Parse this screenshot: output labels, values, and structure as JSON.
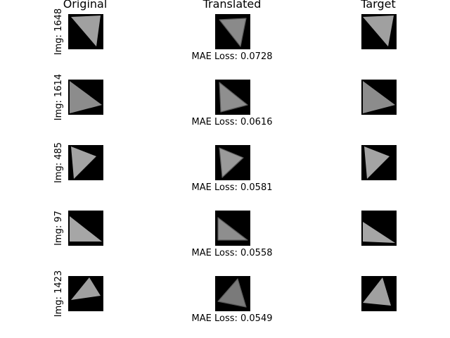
{
  "columns": {
    "original": "Original",
    "translated": "Translated",
    "target": "Target"
  },
  "rows": [
    {
      "label": "Img: 1648",
      "loss": "MAE Loss: 0.0728",
      "original": {
        "points": [
          [
            4,
            4
          ],
          [
            46,
            2
          ],
          [
            40,
            46
          ]
        ],
        "fill": "#a0a0a0"
      },
      "translated": {
        "points": [
          [
            6,
            8
          ],
          [
            44,
            6
          ],
          [
            36,
            46
          ]
        ],
        "fill": "#8a8a8a"
      },
      "target": {
        "points": [
          [
            2,
            4
          ],
          [
            46,
            2
          ],
          [
            38,
            46
          ]
        ],
        "fill": "#a0a0a0"
      }
    },
    {
      "label": "Img: 1614",
      "loss": "MAE Loss: 0.0616",
      "original": {
        "points": [
          [
            2,
            2
          ],
          [
            48,
            36
          ],
          [
            2,
            48
          ]
        ],
        "fill": "#8c8c8c"
      },
      "translated": {
        "points": [
          [
            6,
            4
          ],
          [
            46,
            36
          ],
          [
            8,
            46
          ]
        ],
        "fill": "#8f8f8f"
      },
      "target": {
        "points": [
          [
            2,
            2
          ],
          [
            48,
            36
          ],
          [
            2,
            48
          ]
        ],
        "fill": "#8c8c8c"
      }
    },
    {
      "label": "Img: 485",
      "loss": "MAE Loss: 0.0581",
      "original": {
        "points": [
          [
            4,
            2
          ],
          [
            40,
            16
          ],
          [
            8,
            48
          ]
        ],
        "fill": "#a4a4a4"
      },
      "translated": {
        "points": [
          [
            6,
            4
          ],
          [
            40,
            18
          ],
          [
            10,
            46
          ]
        ],
        "fill": "#9a9a9a"
      },
      "target": {
        "points": [
          [
            4,
            2
          ],
          [
            40,
            16
          ],
          [
            8,
            48
          ]
        ],
        "fill": "#a4a4a4"
      }
    },
    {
      "label": "Img: 97",
      "loss": "MAE Loss: 0.0558",
      "original": {
        "points": [
          [
            2,
            8
          ],
          [
            48,
            44
          ],
          [
            2,
            44
          ]
        ],
        "fill": "#a6a6a6"
      },
      "translated": {
        "points": [
          [
            4,
            10
          ],
          [
            46,
            42
          ],
          [
            4,
            42
          ]
        ],
        "fill": "#8e8e8e"
      },
      "target": {
        "points": [
          [
            2,
            16
          ],
          [
            48,
            46
          ],
          [
            2,
            44
          ]
        ],
        "fill": "#a6a6a6"
      }
    },
    {
      "label": "Img: 1423",
      "loss": "MAE Loss: 0.0549",
      "original": {
        "points": [
          [
            4,
            34
          ],
          [
            30,
            2
          ],
          [
            46,
            28
          ]
        ],
        "fill": "#a0a0a0"
      },
      "translated": {
        "points": [
          [
            4,
            36
          ],
          [
            32,
            4
          ],
          [
            44,
            44
          ]
        ],
        "fill": "#7a7a7a"
      },
      "target": {
        "points": [
          [
            2,
            38
          ],
          [
            30,
            2
          ],
          [
            42,
            42
          ]
        ],
        "fill": "#a0a0a0"
      }
    }
  ]
}
